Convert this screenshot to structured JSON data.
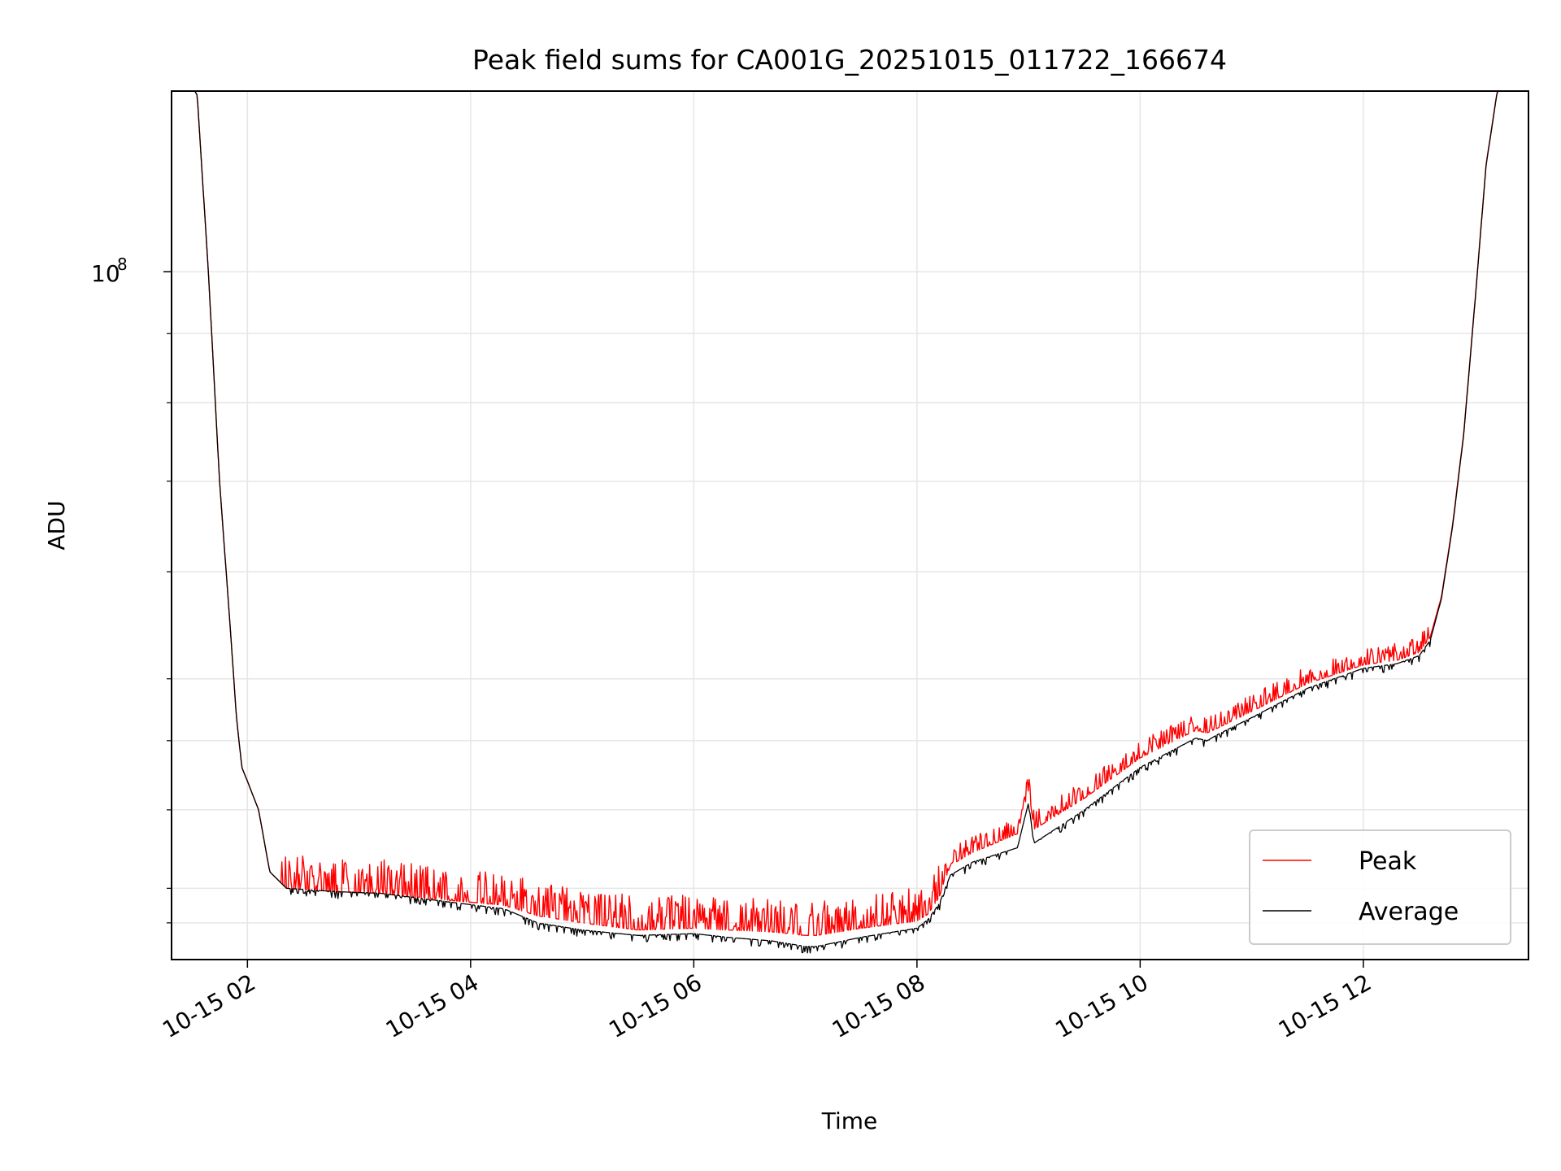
{
  "chart_data": {
    "type": "line",
    "title": "Peak field sums for CA001G_20251015_011722_166674",
    "xlabel": "Time",
    "ylabel": "ADU",
    "yscale": "log",
    "grid": true,
    "legend_position": "lower-right",
    "x_unit": "hours since 10-15 00:00",
    "xlim": [
      1.32,
      13.48
    ],
    "ylim": [
      31000000,
      136000000
    ],
    "x_ticks": [
      {
        "value": 2,
        "label": "10-15 02"
      },
      {
        "value": 4,
        "label": "10-15 04"
      },
      {
        "value": 6,
        "label": "10-15 06"
      },
      {
        "value": 8,
        "label": "10-15 08"
      },
      {
        "value": 10,
        "label": "10-15 10"
      },
      {
        "value": 12,
        "label": "10-15 12"
      }
    ],
    "y_major_ticks": [
      {
        "value": 100000000,
        "base": "10",
        "exp": "8"
      }
    ],
    "y_minor_ticks": [
      33000000,
      35000000,
      40000000,
      45000000,
      50000000,
      60000000,
      70000000,
      80000000,
      90000000
    ],
    "series": [
      {
        "name": "Peak",
        "color": "#ff0000",
        "x": [
          1.32,
          1.45,
          1.55,
          1.65,
          1.75,
          1.85,
          1.9,
          1.95,
          2.0,
          2.1,
          2.2,
          2.35,
          2.8,
          3.2,
          3.8,
          4.3,
          4.6,
          5.0,
          5.5,
          6.0,
          6.3,
          6.7,
          7.0,
          7.1,
          7.5,
          8.0,
          8.1,
          8.2,
          8.3,
          8.5,
          8.9,
          9.0,
          9.05,
          9.5,
          10.0,
          10.5,
          10.6,
          10.7,
          11.0,
          11.5,
          12.0,
          12.3,
          12.5,
          12.6,
          12.7,
          12.8,
          12.9,
          13.0,
          13.1,
          13.2,
          13.35,
          13.48
        ],
        "y": [
          140000000,
          140000000,
          135000000,
          100000000,
          70000000,
          54000000,
          47000000,
          43000000,
          42000000,
          40000000,
          36000000,
          35000000,
          34800000,
          34700000,
          34300000,
          34000000,
          33400000,
          33000000,
          32600000,
          32700000,
          32600000,
          32500000,
          32300000,
          32300000,
          32700000,
          33100000,
          33500000,
          34500000,
          36400000,
          37200000,
          38400000,
          41400000,
          38700000,
          40800000,
          43700000,
          45800000,
          45600000,
          46000000,
          47300000,
          49600000,
          51200000,
          51600000,
          52300000,
          53700000,
          57500000,
          65000000,
          76000000,
          95000000,
          120000000,
          136000000,
          140000000,
          140000000
        ],
        "spike_amplitude": 0.06,
        "spike_range": [
          2.35,
          8.2
        ]
      },
      {
        "name": "Average",
        "color": "#000000",
        "x": [
          1.32,
          1.45,
          1.55,
          1.65,
          1.75,
          1.85,
          1.9,
          1.95,
          2.0,
          2.1,
          2.2,
          2.35,
          2.8,
          3.2,
          3.8,
          4.3,
          4.6,
          5.0,
          5.5,
          6.0,
          6.3,
          6.7,
          7.0,
          7.1,
          7.5,
          8.0,
          8.1,
          8.2,
          8.3,
          8.5,
          8.9,
          9.0,
          9.05,
          9.5,
          10.0,
          10.5,
          10.6,
          10.7,
          11.0,
          11.5,
          12.0,
          12.3,
          12.5,
          12.6,
          12.7,
          12.8,
          12.9,
          13.0,
          13.1,
          13.2,
          13.35,
          13.48
        ],
        "y": [
          140000000,
          140000000,
          135000000,
          100000000,
          70000000,
          54000000,
          47000000,
          43000000,
          42000000,
          40000000,
          36000000,
          35000000,
          34800000,
          34700000,
          34200000,
          33800000,
          33000000,
          32600000,
          32300000,
          32400000,
          32200000,
          32000000,
          31700000,
          31700000,
          32200000,
          32700000,
          33200000,
          34100000,
          35800000,
          36600000,
          37500000,
          40500000,
          37800000,
          40000000,
          43000000,
          45200000,
          45000000,
          45500000,
          46800000,
          49200000,
          50900000,
          51300000,
          52000000,
          53400000,
          57300000,
          64800000,
          75800000,
          94800000,
          119800000,
          135800000,
          140000000,
          140000000
        ]
      }
    ]
  }
}
